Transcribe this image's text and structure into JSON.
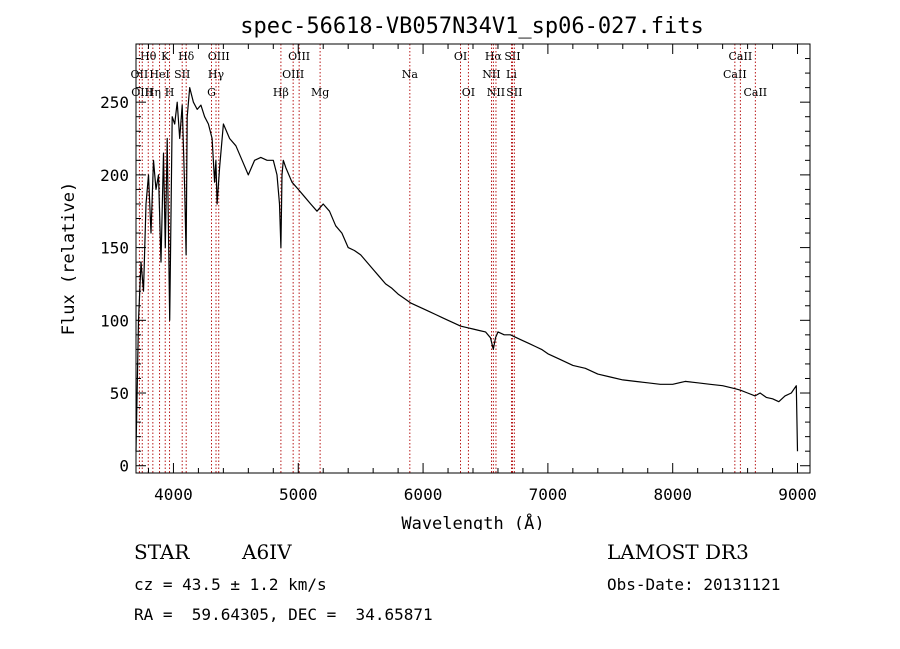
{
  "chart_data": {
    "type": "line",
    "title": "spec-56618-VB057N34V1_sp06-027.fits",
    "xlabel": "Wavelength (Å)",
    "ylabel": "Flux (relative)",
    "xlim": [
      3700,
      9100
    ],
    "ylim": [
      -5,
      290
    ],
    "xticks": [
      4000,
      5000,
      6000,
      7000,
      8000,
      9000
    ],
    "yticks": [
      0,
      50,
      100,
      150,
      200,
      250
    ],
    "grid": false,
    "series": [
      {
        "name": "spectrum",
        "x": [
          3700,
          3720,
          3740,
          3760,
          3780,
          3800,
          3820,
          3840,
          3860,
          3880,
          3900,
          3920,
          3935,
          3950,
          3970,
          3990,
          4010,
          4030,
          4050,
          4070,
          4090,
          4101,
          4110,
          4130,
          4160,
          4190,
          4220,
          4250,
          4280,
          4310,
          4330,
          4340,
          4350,
          4370,
          4400,
          4450,
          4500,
          4550,
          4600,
          4650,
          4700,
          4750,
          4800,
          4830,
          4850,
          4861,
          4870,
          4880,
          4900,
          4950,
          5000,
          5050,
          5100,
          5150,
          5200,
          5250,
          5300,
          5350,
          5400,
          5450,
          5500,
          5550,
          5600,
          5650,
          5700,
          5750,
          5800,
          5850,
          5900,
          5950,
          6000,
          6050,
          6100,
          6150,
          6200,
          6250,
          6300,
          6350,
          6400,
          6450,
          6500,
          6540,
          6563,
          6580,
          6600,
          6650,
          6700,
          6750,
          6800,
          6850,
          6900,
          6950,
          7000,
          7100,
          7200,
          7300,
          7400,
          7500,
          7600,
          7700,
          7800,
          7900,
          8000,
          8100,
          8200,
          8300,
          8400,
          8500,
          8540,
          8600,
          8660,
          8700,
          8750,
          8800,
          8850,
          8900,
          8950,
          8990,
          9000
        ],
        "values": [
          10,
          100,
          140,
          120,
          180,
          200,
          160,
          210,
          190,
          200,
          140,
          215,
          150,
          225,
          100,
          240,
          235,
          250,
          225,
          248,
          190,
          145,
          240,
          260,
          250,
          245,
          248,
          240,
          235,
          225,
          195,
          210,
          180,
          205,
          235,
          225,
          220,
          210,
          200,
          210,
          212,
          210,
          210,
          200,
          180,
          150,
          200,
          210,
          205,
          195,
          190,
          185,
          180,
          175,
          180,
          175,
          165,
          160,
          150,
          148,
          145,
          140,
          135,
          130,
          125,
          122,
          118,
          115,
          112,
          110,
          108,
          106,
          104,
          102,
          100,
          98,
          96,
          95,
          94,
          93,
          92,
          88,
          80,
          88,
          92,
          90,
          90,
          88,
          86,
          84,
          82,
          80,
          77,
          73,
          69,
          67,
          63,
          61,
          59,
          58,
          57,
          56,
          56,
          58,
          57,
          56,
          55,
          53,
          52,
          50,
          48,
          50,
          47,
          46,
          44,
          48,
          50,
          55,
          10
        ]
      }
    ],
    "lines": [
      {
        "name": "Hθ",
        "wave": 3798,
        "row": 1
      },
      {
        "name": "OII",
        "wave": 3727,
        "row": 2
      },
      {
        "name": "OIII",
        "wave": 3750,
        "row": 3
      },
      {
        "name": "K",
        "wave": 3934,
        "row": 1
      },
      {
        "name": "HeI",
        "wave": 3889,
        "row": 2
      },
      {
        "name": "Hη",
        "wave": 3835,
        "row": 3
      },
      {
        "name": "SII",
        "wave": 4070,
        "row": 2
      },
      {
        "name": "H",
        "wave": 3969,
        "row": 3
      },
      {
        "name": "Hδ",
        "wave": 4102,
        "row": 1
      },
      {
        "name": "OIII",
        "wave": 4363,
        "row": 1
      },
      {
        "name": "Hγ",
        "wave": 4341,
        "row": 2
      },
      {
        "name": "G",
        "wave": 4305,
        "row": 3
      },
      {
        "name": "OIII",
        "wave": 5007,
        "row": 1
      },
      {
        "name": "OIII",
        "wave": 4959,
        "row": 2
      },
      {
        "name": "Hβ",
        "wave": 4861,
        "row": 3
      },
      {
        "name": "Mg",
        "wave": 5175,
        "row": 3
      },
      {
        "name": "Na",
        "wave": 5894,
        "row": 2
      },
      {
        "name": "OI",
        "wave": 6300,
        "row": 1
      },
      {
        "name": "OI",
        "wave": 6363,
        "row": 3
      },
      {
        "name": "Hα",
        "wave": 6563,
        "row": 1
      },
      {
        "name": "SII",
        "wave": 6716,
        "row": 1
      },
      {
        "name": "NII",
        "wave": 6548,
        "row": 2
      },
      {
        "name": "Li",
        "wave": 6708,
        "row": 2
      },
      {
        "name": "NII",
        "wave": 6584,
        "row": 3
      },
      {
        "name": "SII",
        "wave": 6731,
        "row": 3
      },
      {
        "name": "CaII",
        "wave": 8542,
        "row": 1
      },
      {
        "name": "CaII",
        "wave": 8498,
        "row": 2
      },
      {
        "name": "CaII",
        "wave": 8662,
        "row": 3
      }
    ]
  },
  "info": {
    "star_label": "STAR",
    "spectral_type": "A6IV",
    "survey": "LAMOST DR3",
    "cz": "cz = 43.5 ± 1.2 km/s",
    "obs_date": "Obs-Date: 20131121",
    "coords": "RA =  59.64305, DEC =  34.65871"
  }
}
